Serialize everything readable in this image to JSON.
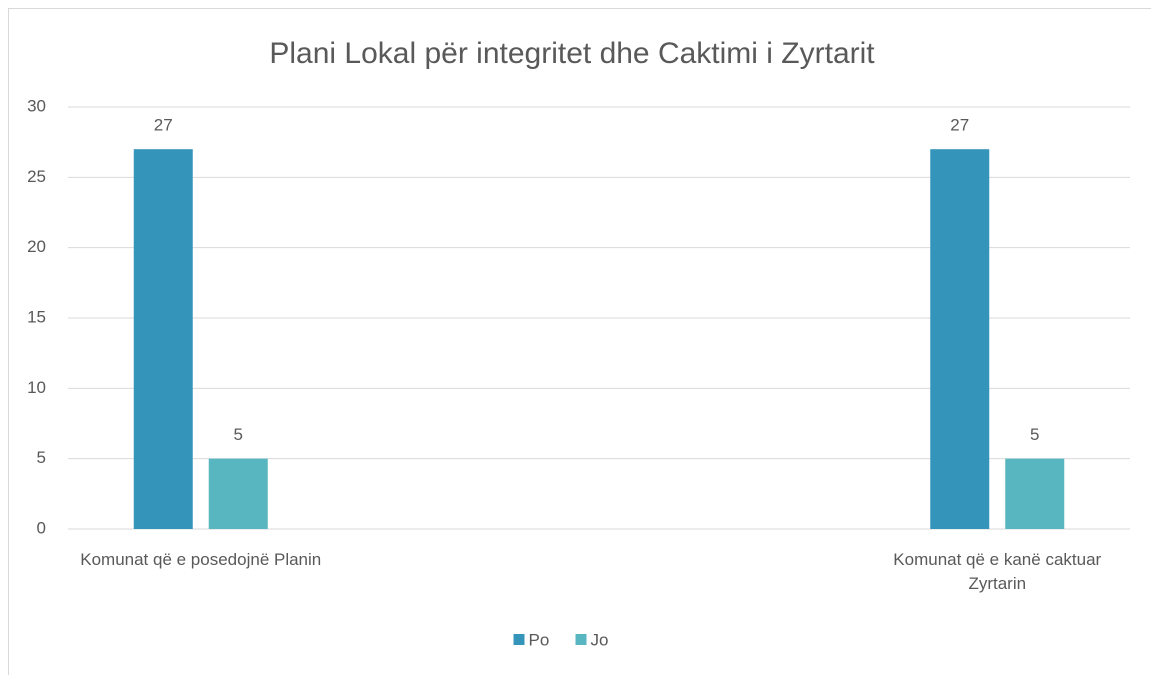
{
  "chart_data": {
    "type": "bar",
    "title": "Plani Lokal për integritet dhe Caktimi i Zyrtarit",
    "categories": [
      "Komunat që e posedojnë Planin",
      null,
      null,
      "Komunat që e kanë caktuar Zyrtarin"
    ],
    "series": [
      {
        "name": "Po",
        "color": "#3494ba",
        "values": [
          27,
          null,
          null,
          27
        ]
      },
      {
        "name": "Jo",
        "color": "#58b6c0",
        "values": [
          5,
          null,
          null,
          5
        ]
      }
    ],
    "ylim": [
      0,
      30
    ],
    "yticks": [
      0,
      5,
      10,
      15,
      20,
      25,
      30
    ],
    "grid": true,
    "legend": "bottom",
    "data_labels": true
  }
}
